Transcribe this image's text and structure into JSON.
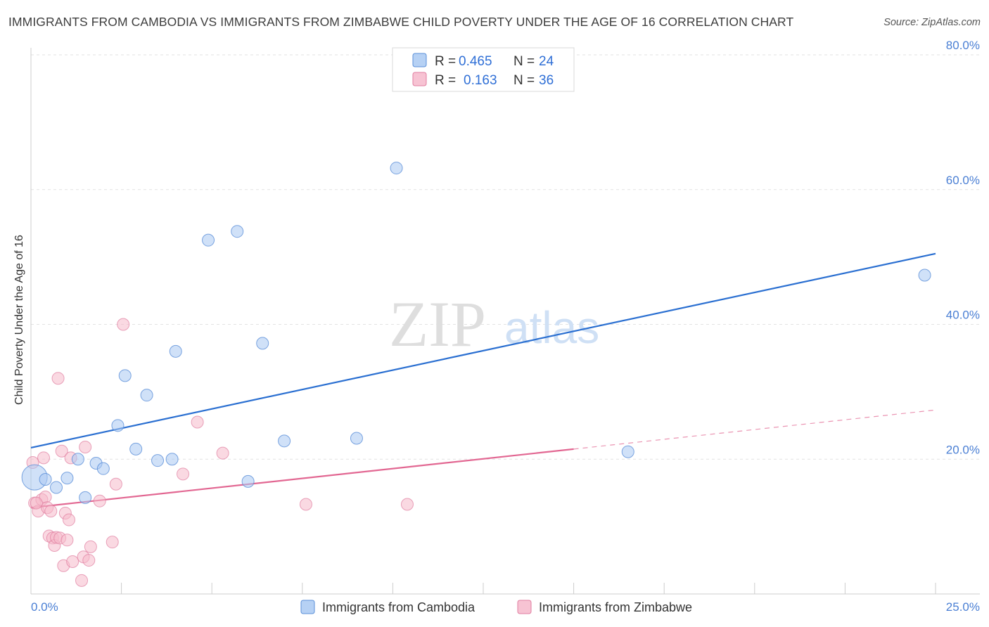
{
  "title": "IMMIGRANTS FROM CAMBODIA VS IMMIGRANTS FROM ZIMBABWE CHILD POVERTY UNDER THE AGE OF 16 CORRELATION CHART",
  "source": "Source: ZipAtlas.com",
  "watermark": {
    "zip": "ZIP",
    "atlas": "atlas"
  },
  "colors": {
    "cambodia_fill": "#a9c9f2",
    "cambodia_stroke": "#5b8fd8",
    "cambodia_line": "#2a6fd1",
    "zimbabwe_fill": "#f6b9cb",
    "zimbabwe_stroke": "#e07ea0",
    "zimbabwe_line": "#e26792",
    "axis_text": "#4a7fd4"
  },
  "legend": {
    "rows": [
      {
        "r_label": "R =",
        "r_value": "0.465",
        "n_label": "N =",
        "n_value": "24"
      },
      {
        "r_label": "R =",
        "r_value": "0.163",
        "n_label": "N =",
        "n_value": "36"
      }
    ]
  },
  "chart_data": {
    "type": "scatter",
    "title": "IMMIGRANTS FROM CAMBODIA VS IMMIGRANTS FROM ZIMBABWE CHILD POVERTY UNDER THE AGE OF 16 CORRELATION CHART",
    "xlabel": "",
    "ylabel": "Child Poverty Under the Age of 16",
    "xlim": [
      0,
      25
    ],
    "ylim": [
      0,
      80
    ],
    "x_tick_labels": [
      "0.0%",
      "25.0%"
    ],
    "y_ticks": [
      20,
      40,
      60,
      80
    ],
    "y_tick_labels": [
      "20.0%",
      "40.0%",
      "60.0%",
      "80.0%"
    ],
    "grid": true,
    "legend_position": "top-center",
    "series": [
      {
        "name": "Immigrants from Cambodia",
        "R": 0.465,
        "N": 24,
        "trend": {
          "x": [
            0,
            25
          ],
          "y": [
            21.7,
            50.5
          ],
          "dashed_from": null
        },
        "points": [
          {
            "x": 0.1,
            "y": 17.3,
            "big": true
          },
          {
            "x": 0.4,
            "y": 17.0
          },
          {
            "x": 0.7,
            "y": 15.8
          },
          {
            "x": 1.0,
            "y": 17.2
          },
          {
            "x": 1.3,
            "y": 20.0
          },
          {
            "x": 1.5,
            "y": 14.3
          },
          {
            "x": 1.8,
            "y": 19.4
          },
          {
            "x": 2.0,
            "y": 18.6
          },
          {
            "x": 2.4,
            "y": 25.0
          },
          {
            "x": 2.6,
            "y": 32.4
          },
          {
            "x": 2.9,
            "y": 21.5
          },
          {
            "x": 3.2,
            "y": 29.5
          },
          {
            "x": 3.5,
            "y": 19.8
          },
          {
            "x": 3.9,
            "y": 20.0
          },
          {
            "x": 4.0,
            "y": 36.0
          },
          {
            "x": 4.9,
            "y": 52.5
          },
          {
            "x": 5.7,
            "y": 53.8
          },
          {
            "x": 6.0,
            "y": 16.7
          },
          {
            "x": 6.4,
            "y": 37.2
          },
          {
            "x": 7.0,
            "y": 22.7
          },
          {
            "x": 9.0,
            "y": 23.1
          },
          {
            "x": 10.1,
            "y": 63.2
          },
          {
            "x": 16.5,
            "y": 21.1
          },
          {
            "x": 24.7,
            "y": 47.3
          }
        ]
      },
      {
        "name": "Immigrants from Zimbabwe",
        "R": 0.163,
        "N": 36,
        "trend": {
          "x": [
            0,
            25
          ],
          "y": [
            12.8,
            27.3
          ],
          "dashed_from": 15.0
        },
        "points": [
          {
            "x": 0.05,
            "y": 19.5
          },
          {
            "x": 0.1,
            "y": 13.5
          },
          {
            "x": 0.2,
            "y": 12.3
          },
          {
            "x": 0.3,
            "y": 14.0
          },
          {
            "x": 0.35,
            "y": 20.2
          },
          {
            "x": 0.4,
            "y": 14.4
          },
          {
            "x": 0.45,
            "y": 12.8
          },
          {
            "x": 0.5,
            "y": 8.6
          },
          {
            "x": 0.55,
            "y": 12.3
          },
          {
            "x": 0.6,
            "y": 8.3
          },
          {
            "x": 0.65,
            "y": 7.2
          },
          {
            "x": 0.7,
            "y": 8.4
          },
          {
            "x": 0.75,
            "y": 32.0
          },
          {
            "x": 0.8,
            "y": 8.3
          },
          {
            "x": 0.85,
            "y": 21.2
          },
          {
            "x": 0.9,
            "y": 4.2
          },
          {
            "x": 0.95,
            "y": 12.0
          },
          {
            "x": 1.0,
            "y": 8.0
          },
          {
            "x": 1.05,
            "y": 11.0
          },
          {
            "x": 1.1,
            "y": 20.2
          },
          {
            "x": 1.15,
            "y": 4.8
          },
          {
            "x": 1.4,
            "y": 2.0
          },
          {
            "x": 1.45,
            "y": 5.5
          },
          {
            "x": 1.5,
            "y": 21.8
          },
          {
            "x": 1.6,
            "y": 5.0
          },
          {
            "x": 1.65,
            "y": 7.0
          },
          {
            "x": 1.9,
            "y": 13.8
          },
          {
            "x": 2.25,
            "y": 7.7
          },
          {
            "x": 2.35,
            "y": 16.3
          },
          {
            "x": 2.55,
            "y": 40.0
          },
          {
            "x": 4.2,
            "y": 17.8
          },
          {
            "x": 4.6,
            "y": 25.5
          },
          {
            "x": 5.3,
            "y": 20.9
          },
          {
            "x": 7.6,
            "y": 13.3
          },
          {
            "x": 10.4,
            "y": 13.3
          },
          {
            "x": 0.15,
            "y": 13.5
          }
        ]
      }
    ]
  },
  "bottom_legend": {
    "items": [
      "Immigrants from Cambodia",
      "Immigrants from Zimbabwe"
    ]
  }
}
